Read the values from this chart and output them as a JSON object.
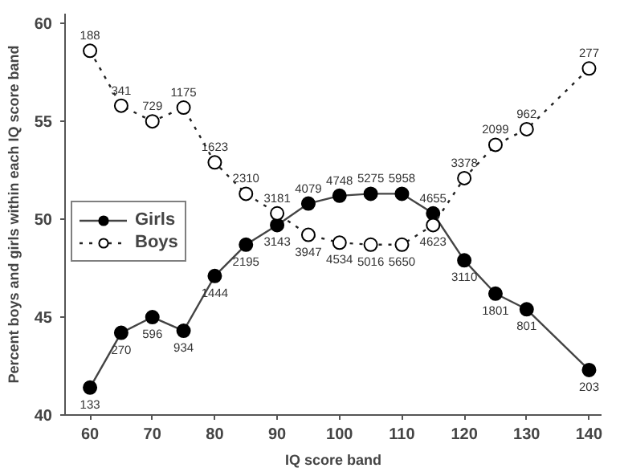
{
  "chart_data": {
    "type": "line",
    "xlabel": "IQ score band",
    "ylabel": "Percent boys and girls within each IQ score band",
    "x": [
      60,
      65,
      70,
      75,
      80,
      85,
      90,
      95,
      100,
      105,
      110,
      115,
      120,
      125,
      130,
      140
    ],
    "series": [
      {
        "name": "Girls",
        "color": "#000000",
        "marker": "circle",
        "line_style": "solid",
        "values": [
          41.4,
          44.2,
          45.0,
          44.3,
          47.1,
          48.7,
          49.7,
          50.8,
          51.2,
          51.3,
          51.3,
          50.3,
          47.9,
          46.2,
          45.4,
          42.3
        ]
      },
      {
        "name": "Boys",
        "color": "#ffffff",
        "marker": "circle",
        "line_style": "dotted",
        "values": [
          58.6,
          55.8,
          55.0,
          55.7,
          52.9,
          51.3,
          50.3,
          49.2,
          48.8,
          48.7,
          48.7,
          49.7,
          52.1,
          53.8,
          54.6,
          57.7
        ]
      }
    ],
    "annotations": [
      {
        "text": "133",
        "x": 60,
        "y": 41.4
      },
      {
        "text": "270",
        "x": 65,
        "y": 44.2
      },
      {
        "text": "596",
        "x": 70,
        "y": 45.0
      },
      {
        "text": "934",
        "x": 75,
        "y": 44.3
      },
      {
        "text": "1444",
        "x": 80,
        "y": 47.1
      },
      {
        "text": "2195",
        "x": 85,
        "y": 48.7
      },
      {
        "text": "3143",
        "x": 90,
        "y": 49.7
      },
      {
        "text": "4079",
        "x": 95,
        "y": 50.8
      },
      {
        "text": "4748",
        "x": 100,
        "y": 51.2
      },
      {
        "text": "5275",
        "x": 105,
        "y": 51.3
      },
      {
        "text": "5958",
        "x": 110,
        "y": 51.3
      },
      {
        "text": "4655",
        "x": 115,
        "y": 50.3
      },
      {
        "text": "3110",
        "x": 120,
        "y": 47.9
      },
      {
        "text": "1801",
        "x": 125,
        "y": 46.2
      },
      {
        "text": "801",
        "x": 130,
        "y": 45.4
      },
      {
        "text": "203",
        "x": 140,
        "y": 42.3
      },
      {
        "text": "188",
        "x": 60,
        "y": 58.6
      },
      {
        "text": "341",
        "x": 65,
        "y": 55.8
      },
      {
        "text": "729",
        "x": 70,
        "y": 55.0
      },
      {
        "text": "1175",
        "x": 75,
        "y": 55.7
      },
      {
        "text": "1623",
        "x": 80,
        "y": 52.9
      },
      {
        "text": "2310",
        "x": 85,
        "y": 51.3
      },
      {
        "text": "3181",
        "x": 90,
        "y": 50.3
      },
      {
        "text": "3947",
        "x": 95,
        "y": 49.2
      },
      {
        "text": "4534",
        "x": 100,
        "y": 48.8
      },
      {
        "text": "5016",
        "x": 105,
        "y": 48.7
      },
      {
        "text": "5650",
        "x": 110,
        "y": 48.7
      },
      {
        "text": "4623",
        "x": 115,
        "y": 49.7
      },
      {
        "text": "3378",
        "x": 120,
        "y": 52.1
      },
      {
        "text": "2099",
        "x": 125,
        "y": 53.8
      },
      {
        "text": "962",
        "x": 130,
        "y": 54.6
      },
      {
        "text": "277",
        "x": 140,
        "y": 57.7
      }
    ],
    "xlim": [
      56,
      142
    ],
    "ylim": [
      40,
      60.5
    ],
    "xticks": [
      60,
      70,
      80,
      90,
      100,
      110,
      120,
      130,
      140
    ],
    "yticks": [
      40,
      45,
      50,
      55,
      60
    ],
    "grid": false,
    "legend": "left"
  }
}
